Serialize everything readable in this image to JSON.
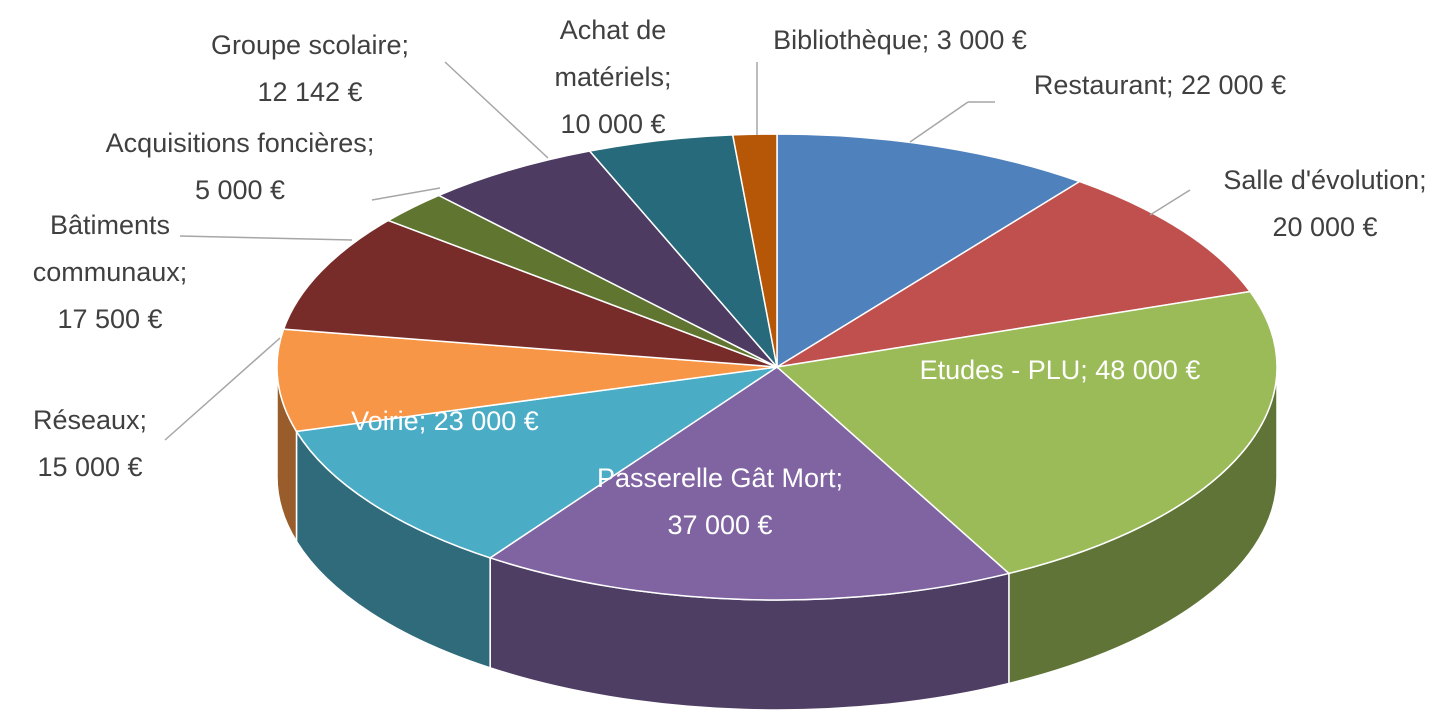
{
  "chart_data": {
    "type": "pie3d",
    "categories": [
      "Restaurant",
      "Salle d'évolution",
      "Etudes - PLU",
      "Passerelle Gât Mort",
      "Voirie",
      "Réseaux",
      "Bâtiments communaux",
      "Acquisitions foncières",
      "Groupe scolaire",
      "Achat de matériels",
      "Bibliothèque"
    ],
    "values": [
      22000,
      20000,
      48000,
      37000,
      23000,
      15000,
      17500,
      5000,
      12142,
      10000,
      3000
    ],
    "value_labels": [
      "22 000 €",
      "20 000 €",
      "48 000 €",
      "37 000 €",
      "23 000 €",
      "15 000 €",
      "17 500 €",
      "5 000 €",
      "12 142 €",
      "10 000 €",
      "3 000 €"
    ],
    "label_separator": "; ",
    "colors": [
      "#4f81bd",
      "#c0504d",
      "#9bbb59",
      "#8064a2",
      "#4bacc6",
      "#f79646",
      "#772c2a",
      "#5f7530",
      "#4d3b62",
      "#276a7c",
      "#b65708"
    ]
  }
}
